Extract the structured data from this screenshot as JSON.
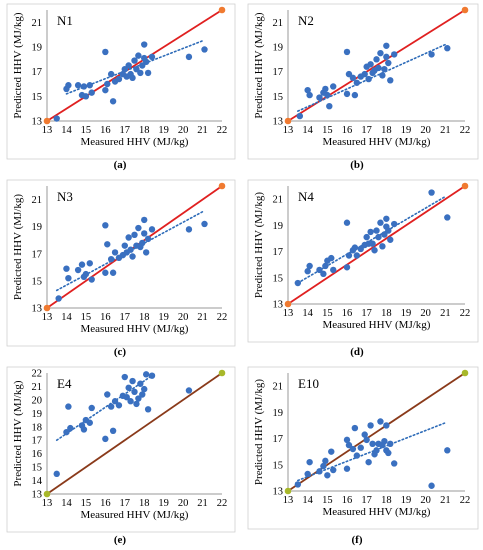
{
  "figure": {
    "panel_labels": [
      "(a)",
      "(b)",
      "(c)",
      "(d)",
      "(e)",
      "(f)"
    ]
  },
  "colors": {
    "points": "#3a70c0",
    "trendline": "#2d6bb8",
    "reference_line_red": "#e02020",
    "reference_line_brown": "#8a3a1a",
    "endpoint_orange": "#f07a30",
    "endpoint_olive": "#a8b82a"
  },
  "chart_data": [
    {
      "type": "scatter",
      "title": "N1",
      "xlabel": "Measured HHV (MJ/kg)",
      "ylabel": "Predicted HHV (MJ/kg)",
      "xlim": [
        13,
        22
      ],
      "ylim": [
        13,
        22
      ],
      "xticks": [
        13,
        14,
        15,
        16,
        17,
        18,
        19,
        20,
        21,
        22
      ],
      "yticks": [
        13,
        15,
        17,
        19,
        21
      ],
      "grid": false,
      "reference_line": {
        "from": [
          13,
          13
        ],
        "to": [
          22,
          22
        ],
        "color": "red",
        "end_markers": "orange"
      },
      "trendline": {
        "type": "linear",
        "style": "dotted",
        "from": [
          14,
          15.2
        ],
        "to": [
          21,
          19.5
        ]
      },
      "points": [
        [
          13.5,
          13.2
        ],
        [
          14,
          15.6
        ],
        [
          14.1,
          15.9
        ],
        [
          14.6,
          15.9
        ],
        [
          14.8,
          15.1
        ],
        [
          14.9,
          15.8
        ],
        [
          15,
          15
        ],
        [
          15.2,
          15.9
        ],
        [
          15.3,
          15.3
        ],
        [
          16,
          15.5
        ],
        [
          16,
          18.6
        ],
        [
          16.1,
          16
        ],
        [
          16.3,
          16.8
        ],
        [
          16.4,
          14.6
        ],
        [
          16.5,
          16.2
        ],
        [
          16.7,
          16.4
        ],
        [
          16.9,
          16.8
        ],
        [
          17,
          17.2
        ],
        [
          17.1,
          16.6
        ],
        [
          17.2,
          17.5
        ],
        [
          17.3,
          16.8
        ],
        [
          17.4,
          16.5
        ],
        [
          17.5,
          17.9
        ],
        [
          17.6,
          17.2
        ],
        [
          17.7,
          18.3
        ],
        [
          17.8,
          16.9
        ],
        [
          17.9,
          17.5
        ],
        [
          18,
          18.1
        ],
        [
          18,
          19.2
        ],
        [
          18.1,
          17.8
        ],
        [
          18.2,
          16.9
        ],
        [
          18.4,
          18.2
        ],
        [
          20.3,
          18.2
        ],
        [
          21.1,
          18.8
        ]
      ]
    },
    {
      "type": "scatter",
      "title": "N2",
      "xlabel": "Measured HHV (MJ/kg)",
      "ylabel": "Predicted HHV (MJ/kg)",
      "xlim": [
        13,
        22
      ],
      "ylim": [
        13,
        22
      ],
      "xticks": [
        13,
        14,
        15,
        16,
        17,
        18,
        19,
        20,
        21,
        22
      ],
      "yticks": [
        13,
        15,
        17,
        19,
        21
      ],
      "grid": false,
      "reference_line": {
        "from": [
          13,
          13
        ],
        "to": [
          22,
          22
        ],
        "color": "red",
        "end_markers": "orange"
      },
      "trendline": {
        "type": "linear",
        "style": "dotted",
        "from": [
          13.5,
          13.8
        ],
        "to": [
          21,
          19.2
        ]
      },
      "points": [
        [
          13.6,
          13.4
        ],
        [
          14,
          15.5
        ],
        [
          14.1,
          15.1
        ],
        [
          14.6,
          14.9
        ],
        [
          14.8,
          15.3
        ],
        [
          14.9,
          15.6
        ],
        [
          15,
          15.1
        ],
        [
          15.1,
          14.2
        ],
        [
          15.3,
          15.8
        ],
        [
          16,
          15.2
        ],
        [
          16,
          18.6
        ],
        [
          16.1,
          16.8
        ],
        [
          16.3,
          16.5
        ],
        [
          16.4,
          15.1
        ],
        [
          16.5,
          16.1
        ],
        [
          16.7,
          16.6
        ],
        [
          16.9,
          16.8
        ],
        [
          17,
          17.4
        ],
        [
          17.1,
          16.4
        ],
        [
          17.2,
          17.6
        ],
        [
          17.3,
          16.9
        ],
        [
          17.4,
          17.1
        ],
        [
          17.5,
          18
        ],
        [
          17.6,
          17.3
        ],
        [
          17.7,
          18.5
        ],
        [
          17.8,
          16.7
        ],
        [
          17.9,
          17.2
        ],
        [
          18,
          18.2
        ],
        [
          18,
          19.1
        ],
        [
          18.1,
          17.7
        ],
        [
          18.2,
          16.3
        ],
        [
          18.4,
          18.4
        ],
        [
          20.3,
          18.4
        ],
        [
          21.1,
          18.9
        ]
      ]
    },
    {
      "type": "scatter",
      "title": "N3",
      "xlabel": "Measured HHV (MJ/kg)",
      "ylabel": "Predicted HHV (MJ/kg)",
      "xlim": [
        13,
        22
      ],
      "ylim": [
        13,
        22
      ],
      "xticks": [
        13,
        14,
        15,
        16,
        17,
        18,
        19,
        20,
        21,
        22
      ],
      "yticks": [
        13,
        15,
        17,
        19,
        21
      ],
      "grid": false,
      "reference_line": {
        "from": [
          13,
          13
        ],
        "to": [
          22,
          22
        ],
        "color": "red",
        "end_markers": "orange"
      },
      "trendline": {
        "type": "linear",
        "style": "dotted",
        "from": [
          13.5,
          14.3
        ],
        "to": [
          21,
          20.1
        ]
      },
      "points": [
        [
          13.6,
          13.7
        ],
        [
          14,
          15.9
        ],
        [
          14.1,
          15.2
        ],
        [
          14.6,
          15.8
        ],
        [
          14.8,
          16.2
        ],
        [
          14.9,
          15.3
        ],
        [
          15,
          15.5
        ],
        [
          15.2,
          16.3
        ],
        [
          15.3,
          15.1
        ],
        [
          16,
          15.6
        ],
        [
          16,
          19.1
        ],
        [
          16.1,
          17.7
        ],
        [
          16.3,
          16.6
        ],
        [
          16.4,
          15.6
        ],
        [
          16.5,
          17.1
        ],
        [
          16.7,
          16.7
        ],
        [
          16.9,
          16.9
        ],
        [
          17,
          17.6
        ],
        [
          17.1,
          17.1
        ],
        [
          17.2,
          18.2
        ],
        [
          17.3,
          17.3
        ],
        [
          17.4,
          16.8
        ],
        [
          17.5,
          18.4
        ],
        [
          17.6,
          17.6
        ],
        [
          17.7,
          18.9
        ],
        [
          17.8,
          17.5
        ],
        [
          17.9,
          17.8
        ],
        [
          18,
          18.5
        ],
        [
          18,
          19.5
        ],
        [
          18.1,
          17.1
        ],
        [
          18.2,
          18.1
        ],
        [
          18.4,
          18.8
        ],
        [
          20.3,
          18.8
        ],
        [
          21.1,
          19.2
        ]
      ]
    },
    {
      "type": "scatter",
      "title": "N4",
      "xlabel": "Measured HHV (MJ/kg)",
      "ylabel": "Predicted HHV (MJ/kg)",
      "xlim": [
        13,
        22
      ],
      "ylim": [
        13,
        22
      ],
      "xticks": [
        13,
        14,
        15,
        16,
        17,
        18,
        19,
        20,
        21,
        22
      ],
      "yticks": [
        13,
        15,
        17,
        19,
        21
      ],
      "grid": false,
      "reference_line": {
        "from": [
          13,
          13
        ],
        "to": [
          22,
          22
        ],
        "color": "red",
        "end_markers": "orange"
      },
      "trendline": {
        "type": "linear",
        "style": "dotted",
        "from": [
          13.5,
          14.6
        ],
        "to": [
          21,
          21.2
        ]
      },
      "points": [
        [
          13.5,
          14.6
        ],
        [
          14,
          15.5
        ],
        [
          14.1,
          15.9
        ],
        [
          14.6,
          15.6
        ],
        [
          14.8,
          15.3
        ],
        [
          14.9,
          15.9
        ],
        [
          15,
          16.3
        ],
        [
          15.2,
          16.5
        ],
        [
          15.3,
          15.6
        ],
        [
          16,
          15.8
        ],
        [
          16,
          19.2
        ],
        [
          16.1,
          16.7
        ],
        [
          16.3,
          17.1
        ],
        [
          16.4,
          17.3
        ],
        [
          16.5,
          16.7
        ],
        [
          16.7,
          17.2
        ],
        [
          16.9,
          17.5
        ],
        [
          17,
          18.1
        ],
        [
          17.1,
          17.6
        ],
        [
          17.2,
          18.5
        ],
        [
          17.3,
          17.6
        ],
        [
          17.4,
          17.1
        ],
        [
          17.5,
          18.6
        ],
        [
          17.6,
          18.1
        ],
        [
          17.7,
          19.2
        ],
        [
          17.8,
          17.4
        ],
        [
          17.9,
          18.3
        ],
        [
          18,
          18.9
        ],
        [
          18,
          19.5
        ],
        [
          18.1,
          18.6
        ],
        [
          18.2,
          17.9
        ],
        [
          18.4,
          19.1
        ],
        [
          20.3,
          21.5
        ],
        [
          21.1,
          19.6
        ]
      ]
    },
    {
      "type": "scatter",
      "title": "E4",
      "xlabel": "Measured HHV (MJ/kg)",
      "ylabel": "Predicted HHV (MJ/kg)",
      "xlim": [
        13,
        22
      ],
      "ylim": [
        13,
        22
      ],
      "xticks": [
        13,
        14,
        15,
        16,
        17,
        18,
        19,
        20,
        21,
        22
      ],
      "yticks": [
        13,
        14,
        15,
        16,
        17,
        18,
        19,
        20,
        21,
        22
      ],
      "grid": false,
      "reference_line": {
        "from": [
          13,
          13
        ],
        "to": [
          22,
          22
        ],
        "color": "brown",
        "end_markers": "olive"
      },
      "trendline": {
        "type": "linear",
        "style": "dotted",
        "from": [
          13.5,
          17
        ],
        "to": [
          18.6,
          22
        ]
      },
      "points": [
        [
          13.5,
          14.5
        ],
        [
          14,
          17.6
        ],
        [
          14.1,
          19.5
        ],
        [
          14.2,
          17.9
        ],
        [
          14.8,
          18.1
        ],
        [
          14.9,
          17.8
        ],
        [
          15,
          18.5
        ],
        [
          15.2,
          18.3
        ],
        [
          15.3,
          19.4
        ],
        [
          16,
          17.1
        ],
        [
          16.1,
          20.4
        ],
        [
          16.3,
          19.5
        ],
        [
          16.4,
          17.7
        ],
        [
          16.5,
          19.9
        ],
        [
          16.7,
          19.6
        ],
        [
          16.9,
          20.3
        ],
        [
          17,
          21.7
        ],
        [
          17.1,
          20.2
        ],
        [
          17.2,
          20.9
        ],
        [
          17.3,
          19.9
        ],
        [
          17.4,
          21.4
        ],
        [
          17.5,
          20.6
        ],
        [
          17.6,
          19.7
        ],
        [
          17.7,
          20.1
        ],
        [
          17.8,
          21.2
        ],
        [
          17.9,
          20.4
        ],
        [
          18,
          20.8
        ],
        [
          18.1,
          21.9
        ],
        [
          18.2,
          19.3
        ],
        [
          18.4,
          21.8
        ],
        [
          20.3,
          20.7
        ]
      ]
    },
    {
      "type": "scatter",
      "title": "E10",
      "xlabel": "Measured HHV (MJ/kg)",
      "ylabel": "Predicted HHV (MJ/kg)",
      "xlim": [
        13,
        22
      ],
      "ylim": [
        13,
        22
      ],
      "xticks": [
        13,
        14,
        15,
        16,
        17,
        18,
        19,
        20,
        21,
        22
      ],
      "yticks": [
        13,
        15,
        17,
        19,
        21
      ],
      "grid": false,
      "reference_line": {
        "from": [
          13,
          13
        ],
        "to": [
          22,
          22
        ],
        "color": "brown",
        "end_markers": "olive"
      },
      "trendline": {
        "type": "linear",
        "style": "dotted",
        "from": [
          13.5,
          13.8
        ],
        "to": [
          21,
          18.2
        ]
      },
      "points": [
        [
          13.5,
          13.5
        ],
        [
          14,
          14.3
        ],
        [
          14.1,
          15.2
        ],
        [
          14.6,
          14.5
        ],
        [
          14.8,
          14.9
        ],
        [
          14.9,
          15.3
        ],
        [
          15,
          14.2
        ],
        [
          15.2,
          16
        ],
        [
          15.3,
          14.6
        ],
        [
          16,
          14.7
        ],
        [
          16,
          16.9
        ],
        [
          16.1,
          16.5
        ],
        [
          16.3,
          16.2
        ],
        [
          16.4,
          17.8
        ],
        [
          16.5,
          15.7
        ],
        [
          16.7,
          16.3
        ],
        [
          16.9,
          17.3
        ],
        [
          17,
          16.9
        ],
        [
          17.1,
          15.2
        ],
        [
          17.2,
          18
        ],
        [
          17.3,
          16.6
        ],
        [
          17.4,
          15.8
        ],
        [
          17.5,
          16.1
        ],
        [
          17.6,
          16.6
        ],
        [
          17.7,
          18.3
        ],
        [
          17.8,
          16.5
        ],
        [
          17.9,
          16.8
        ],
        [
          18,
          16.1
        ],
        [
          18,
          18
        ],
        [
          18.1,
          15.9
        ],
        [
          18.2,
          16.6
        ],
        [
          18.4,
          15.1
        ],
        [
          20.3,
          13.4
        ],
        [
          21.1,
          16.1
        ]
      ]
    }
  ]
}
